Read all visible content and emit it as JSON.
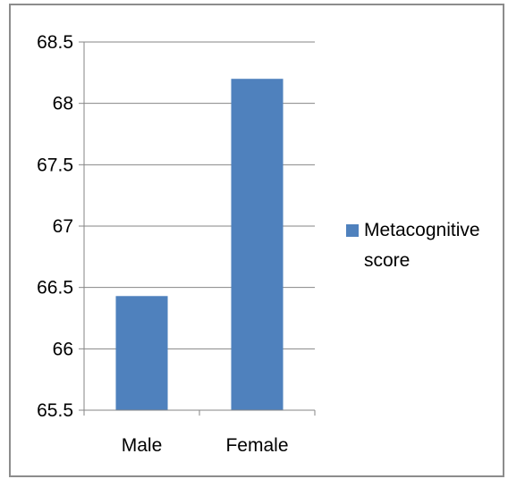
{
  "chart_data": {
    "type": "bar",
    "categories": [
      "Male",
      "Female"
    ],
    "series": [
      {
        "name": "Metacognitive score",
        "values": [
          66.43,
          68.2
        ],
        "color": "#4f81bd"
      }
    ],
    "title": "",
    "xlabel": "",
    "ylabel": "",
    "ylim": [
      65.5,
      68.5
    ],
    "yticks": [
      65.5,
      66,
      66.5,
      67,
      67.5,
      68,
      68.5
    ],
    "ytick_labels": [
      "65.5",
      "66",
      "66.5",
      "67",
      "67.5",
      "68",
      "68.5"
    ],
    "grid": true,
    "legend_position": "right"
  }
}
